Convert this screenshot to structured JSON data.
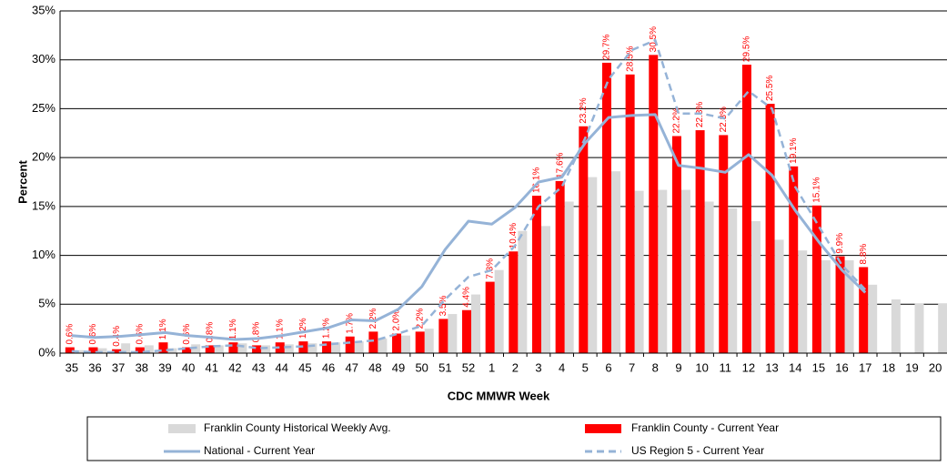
{
  "chart_data": {
    "type": "bar",
    "y_label": "Percent",
    "x_label": "CDC MMWR Week",
    "categories": [
      "35",
      "36",
      "37",
      "38",
      "39",
      "40",
      "41",
      "42",
      "43",
      "44",
      "45",
      "46",
      "47",
      "48",
      "49",
      "50",
      "51",
      "52",
      "1",
      "2",
      "3",
      "4",
      "5",
      "6",
      "7",
      "8",
      "9",
      "10",
      "11",
      "12",
      "13",
      "14",
      "15",
      "16",
      "17",
      "18",
      "19",
      "20"
    ],
    "ylim": [
      0,
      35
    ],
    "yticks": [
      {
        "value": 0,
        "label": "0%"
      },
      {
        "value": 5,
        "label": "5%"
      },
      {
        "value": 10,
        "label": "10%"
      },
      {
        "value": 15,
        "label": "15%"
      },
      {
        "value": 20,
        "label": "20%"
      },
      {
        "value": 25,
        "label": "25%"
      },
      {
        "value": 30,
        "label": "30%"
      },
      {
        "value": 35,
        "label": "35%"
      }
    ],
    "grid": true,
    "series": [
      {
        "name": "Franklin County Historical Weekly Avg.",
        "color": "#d9d9d9",
        "mark": "bar",
        "values": [
          0.3,
          0.5,
          1.0,
          0.8,
          0.5,
          0.9,
          0.8,
          1.0,
          0.8,
          0.9,
          1.0,
          1.1,
          1.2,
          1.5,
          1.8,
          2.5,
          4.0,
          6.0,
          8.5,
          12.5,
          13.0,
          15.5,
          18.0,
          18.6,
          16.6,
          16.7,
          16.7,
          15.5,
          14.8,
          13.5,
          11.6,
          10.5,
          9.5,
          9.5,
          7.0,
          5.5,
          5.1,
          5.1
        ]
      },
      {
        "name": "Franklin County - Current Year",
        "color": "#ff0000",
        "mark": "bar",
        "values": [
          0.6,
          0.6,
          0.4,
          0.6,
          1.1,
          0.6,
          0.8,
          1.1,
          0.8,
          1.1,
          1.2,
          1.2,
          1.7,
          2.2,
          2.0,
          2.2,
          3.5,
          4.4,
          7.3,
          10.4,
          16.1,
          17.6,
          23.2,
          29.7,
          28.5,
          30.5,
          22.2,
          22.8,
          22.3,
          29.5,
          25.5,
          19.1,
          15.1,
          9.9,
          8.8,
          null,
          null,
          null
        ],
        "value_labels": [
          "0.6%",
          "0.6%",
          "0.4%",
          "0.6%",
          "1.1%",
          "0.6%",
          "0.8%",
          "1.1%",
          "0.8%",
          "1.1%",
          "1.2%",
          "1.2%",
          "1.7%",
          "2.2%",
          "2.0%",
          "2.2%",
          "3.5%",
          "4.4%",
          "7.3%",
          "10.4%",
          "16.1%",
          "17.6%",
          "23.2%",
          "29.7%",
          "28.5%",
          "30.5%",
          "22.2%",
          "22.8%",
          "22.3%",
          "29.5%",
          "25.5%",
          "19.1%",
          "15.1%",
          "9.9%",
          "8.8%",
          null,
          null,
          null
        ]
      },
      {
        "name": "National - Current Year",
        "color": "#95b3d7",
        "mark": "line",
        "values": [
          1.8,
          1.6,
          1.7,
          1.9,
          2.1,
          1.8,
          1.6,
          1.4,
          1.5,
          1.8,
          2.2,
          2.6,
          3.4,
          3.3,
          4.5,
          6.8,
          10.6,
          13.5,
          13.2,
          14.9,
          17.5,
          18.0,
          21.5,
          24.1,
          24.3,
          24.4,
          19.2,
          18.9,
          18.5,
          20.3,
          18.2,
          14.6,
          11.4,
          8.5,
          6.2,
          null,
          null,
          null
        ]
      },
      {
        "name": "US Region 5 - Current Year",
        "color": "#95b3d7",
        "mark": "dashed-line",
        "values": [
          0.2,
          0.1,
          0.1,
          0.1,
          0.3,
          0.5,
          0.7,
          0.8,
          0.5,
          0.6,
          0.7,
          0.9,
          1.1,
          1.3,
          2.0,
          2.8,
          5.5,
          7.8,
          8.5,
          11.0,
          15.0,
          17.0,
          22.0,
          28.0,
          31.0,
          32.0,
          24.5,
          24.5,
          24.0,
          26.8,
          25.0,
          17.0,
          13.0,
          9.0,
          6.5,
          null,
          null,
          null
        ]
      }
    ]
  }
}
